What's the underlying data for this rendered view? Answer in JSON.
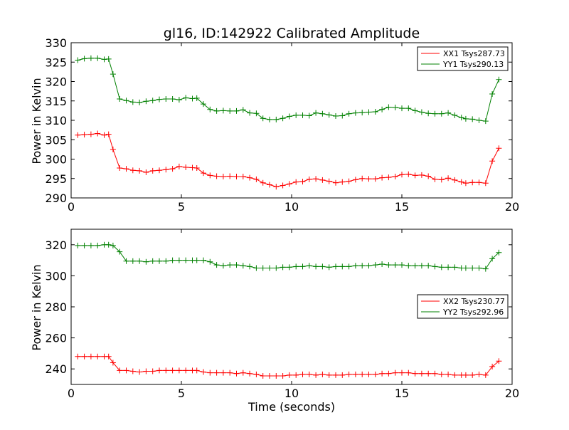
{
  "chart_data": [
    {
      "type": "line",
      "title": "gl16, ID:142922 Calibrated Amplitude",
      "xlabel": "",
      "ylabel": "Power in Kelvin",
      "xlim": [
        0,
        20
      ],
      "ylim": [
        290,
        330
      ],
      "xticks": [
        "0",
        "5",
        "10",
        "15",
        "20"
      ],
      "yticks": [
        "290",
        "295",
        "300",
        "305",
        "310",
        "315",
        "320",
        "325",
        "330"
      ],
      "legend_position": "top-right",
      "grid": false,
      "series": [
        {
          "name": "XX1 Tsys287.73",
          "color": "#ff0000",
          "x": [
            0.3,
            0.6,
            0.9,
            1.2,
            1.5,
            1.7,
            1.9,
            2.2,
            2.5,
            2.8,
            3.1,
            3.4,
            3.7,
            4.0,
            4.3,
            4.6,
            4.9,
            5.2,
            5.5,
            5.7,
            6.0,
            6.3,
            6.6,
            6.9,
            7.2,
            7.5,
            7.8,
            8.1,
            8.4,
            8.7,
            9.0,
            9.3,
            9.6,
            9.9,
            10.2,
            10.5,
            10.8,
            11.1,
            11.4,
            11.7,
            12.0,
            12.3,
            12.6,
            12.9,
            13.2,
            13.5,
            13.8,
            14.1,
            14.4,
            14.7,
            15.0,
            15.3,
            15.6,
            15.9,
            16.2,
            16.5,
            16.8,
            17.1,
            17.4,
            17.7,
            17.9,
            18.2,
            18.5,
            18.8,
            19.1,
            19.4
          ],
          "values": [
            306.2,
            306.3,
            306.4,
            306.6,
            306.2,
            306.4,
            302.5,
            297.7,
            297.5,
            297.1,
            297.0,
            296.6,
            297.0,
            297.1,
            297.3,
            297.5,
            298.1,
            297.9,
            297.8,
            297.7,
            296.4,
            295.8,
            295.6,
            295.5,
            295.6,
            295.5,
            295.5,
            295.2,
            294.8,
            293.9,
            293.4,
            292.9,
            293.2,
            293.6,
            294.1,
            294.2,
            294.8,
            294.9,
            294.6,
            294.3,
            293.9,
            294.1,
            294.3,
            294.7,
            295.0,
            294.9,
            294.9,
            295.2,
            295.3,
            295.5,
            296.0,
            296.1,
            295.8,
            295.9,
            295.6,
            294.8,
            294.7,
            295.1,
            294.6,
            294.1,
            293.8,
            294.0,
            294.0,
            293.8,
            299.5,
            302.8
          ]
        },
        {
          "name": "YY1 Tsys290.13",
          "color": "#008000",
          "x": [
            0.3,
            0.6,
            0.9,
            1.2,
            1.5,
            1.7,
            1.9,
            2.2,
            2.5,
            2.8,
            3.1,
            3.4,
            3.7,
            4.0,
            4.3,
            4.6,
            4.9,
            5.2,
            5.5,
            5.7,
            6.0,
            6.3,
            6.6,
            6.9,
            7.2,
            7.5,
            7.8,
            8.1,
            8.4,
            8.7,
            9.0,
            9.3,
            9.6,
            9.9,
            10.2,
            10.5,
            10.8,
            11.1,
            11.4,
            11.7,
            12.0,
            12.3,
            12.6,
            12.9,
            13.2,
            13.5,
            13.8,
            14.1,
            14.4,
            14.7,
            15.0,
            15.3,
            15.6,
            15.9,
            16.2,
            16.5,
            16.8,
            17.1,
            17.4,
            17.7,
            17.9,
            18.2,
            18.5,
            18.8,
            19.1,
            19.4
          ],
          "values": [
            325.5,
            325.9,
            326.0,
            326.0,
            325.7,
            325.8,
            321.9,
            315.5,
            315.1,
            314.7,
            314.6,
            314.9,
            315.1,
            315.4,
            315.5,
            315.5,
            315.3,
            315.8,
            315.6,
            315.7,
            314.2,
            312.8,
            312.4,
            312.5,
            312.4,
            312.4,
            312.7,
            311.9,
            311.8,
            310.5,
            310.2,
            310.2,
            310.5,
            311.0,
            311.3,
            311.3,
            311.2,
            311.9,
            311.7,
            311.4,
            311.1,
            311.2,
            311.7,
            311.9,
            312.0,
            312.1,
            312.2,
            312.8,
            313.4,
            313.3,
            313.1,
            313.1,
            312.5,
            312.1,
            311.8,
            311.7,
            311.7,
            311.9,
            311.3,
            310.7,
            310.4,
            310.3,
            310.0,
            309.8,
            316.8,
            320.5
          ]
        }
      ]
    },
    {
      "type": "line",
      "title": "",
      "xlabel": "Time (seconds)",
      "ylabel": "Power in Kelvin",
      "xlim": [
        0,
        20
      ],
      "ylim": [
        230,
        330
      ],
      "xticks": [
        "0",
        "5",
        "10",
        "15",
        "20"
      ],
      "yticks": [
        "240",
        "260",
        "280",
        "300",
        "320"
      ],
      "legend_position": "center-right",
      "grid": false,
      "series": [
        {
          "name": "XX2 Tsys230.77",
          "color": "#ff0000",
          "x": [
            0.3,
            0.6,
            0.9,
            1.2,
            1.5,
            1.7,
            1.9,
            2.2,
            2.5,
            2.8,
            3.1,
            3.4,
            3.7,
            4.0,
            4.3,
            4.6,
            4.9,
            5.2,
            5.5,
            5.7,
            6.0,
            6.3,
            6.6,
            6.9,
            7.2,
            7.5,
            7.8,
            8.1,
            8.4,
            8.7,
            9.0,
            9.3,
            9.6,
            9.9,
            10.2,
            10.5,
            10.8,
            11.1,
            11.4,
            11.7,
            12.0,
            12.3,
            12.6,
            12.9,
            13.2,
            13.5,
            13.8,
            14.1,
            14.4,
            14.7,
            15.0,
            15.3,
            15.6,
            15.9,
            16.2,
            16.5,
            16.8,
            17.1,
            17.4,
            17.7,
            17.9,
            18.2,
            18.5,
            18.8,
            19.1,
            19.4
          ],
          "values": [
            248.0,
            248.0,
            248.0,
            248.0,
            248.0,
            248.0,
            244.0,
            239.0,
            239.0,
            238.5,
            238.0,
            238.5,
            238.5,
            239.0,
            239.0,
            239.0,
            239.0,
            239.0,
            239.0,
            239.0,
            238.0,
            237.5,
            237.5,
            237.5,
            237.5,
            237.0,
            237.5,
            237.0,
            236.5,
            235.5,
            235.5,
            235.5,
            235.5,
            236.0,
            236.0,
            236.5,
            236.5,
            236.0,
            236.5,
            236.0,
            236.0,
            236.0,
            236.5,
            236.5,
            236.5,
            236.5,
            236.5,
            237.0,
            237.0,
            237.5,
            237.5,
            237.5,
            237.0,
            237.0,
            237.0,
            237.0,
            236.5,
            236.5,
            236.0,
            236.0,
            236.0,
            236.0,
            236.5,
            236.0,
            241.5,
            245.0
          ]
        },
        {
          "name": "YY2 Tsys292.96",
          "color": "#008000",
          "x": [
            0.3,
            0.6,
            0.9,
            1.2,
            1.5,
            1.7,
            1.9,
            2.2,
            2.5,
            2.8,
            3.1,
            3.4,
            3.7,
            4.0,
            4.3,
            4.6,
            4.9,
            5.2,
            5.5,
            5.7,
            6.0,
            6.3,
            6.6,
            6.9,
            7.2,
            7.5,
            7.8,
            8.1,
            8.4,
            8.7,
            9.0,
            9.3,
            9.6,
            9.9,
            10.2,
            10.5,
            10.8,
            11.1,
            11.4,
            11.7,
            12.0,
            12.3,
            12.6,
            12.9,
            13.2,
            13.5,
            13.8,
            14.1,
            14.4,
            14.7,
            15.0,
            15.3,
            15.6,
            15.9,
            16.2,
            16.5,
            16.8,
            17.1,
            17.4,
            17.7,
            17.9,
            18.2,
            18.5,
            18.8,
            19.1,
            19.4
          ],
          "values": [
            319.5,
            319.5,
            319.5,
            319.5,
            320.0,
            320.0,
            319.5,
            315.5,
            309.5,
            309.5,
            309.5,
            309.0,
            309.5,
            309.5,
            309.5,
            310.0,
            310.0,
            310.0,
            310.0,
            310.0,
            310.0,
            309.0,
            307.0,
            306.5,
            307.0,
            307.0,
            306.5,
            306.0,
            305.0,
            305.0,
            305.0,
            305.0,
            305.5,
            305.5,
            306.0,
            306.0,
            306.5,
            306.0,
            306.0,
            305.5,
            306.0,
            306.0,
            306.0,
            306.5,
            306.5,
            306.5,
            307.0,
            307.5,
            307.0,
            307.0,
            307.0,
            306.5,
            306.5,
            306.5,
            306.5,
            306.0,
            305.5,
            305.5,
            305.5,
            305.0,
            305.0,
            305.0,
            305.0,
            304.5,
            311.0,
            315.0
          ]
        }
      ]
    }
  ]
}
